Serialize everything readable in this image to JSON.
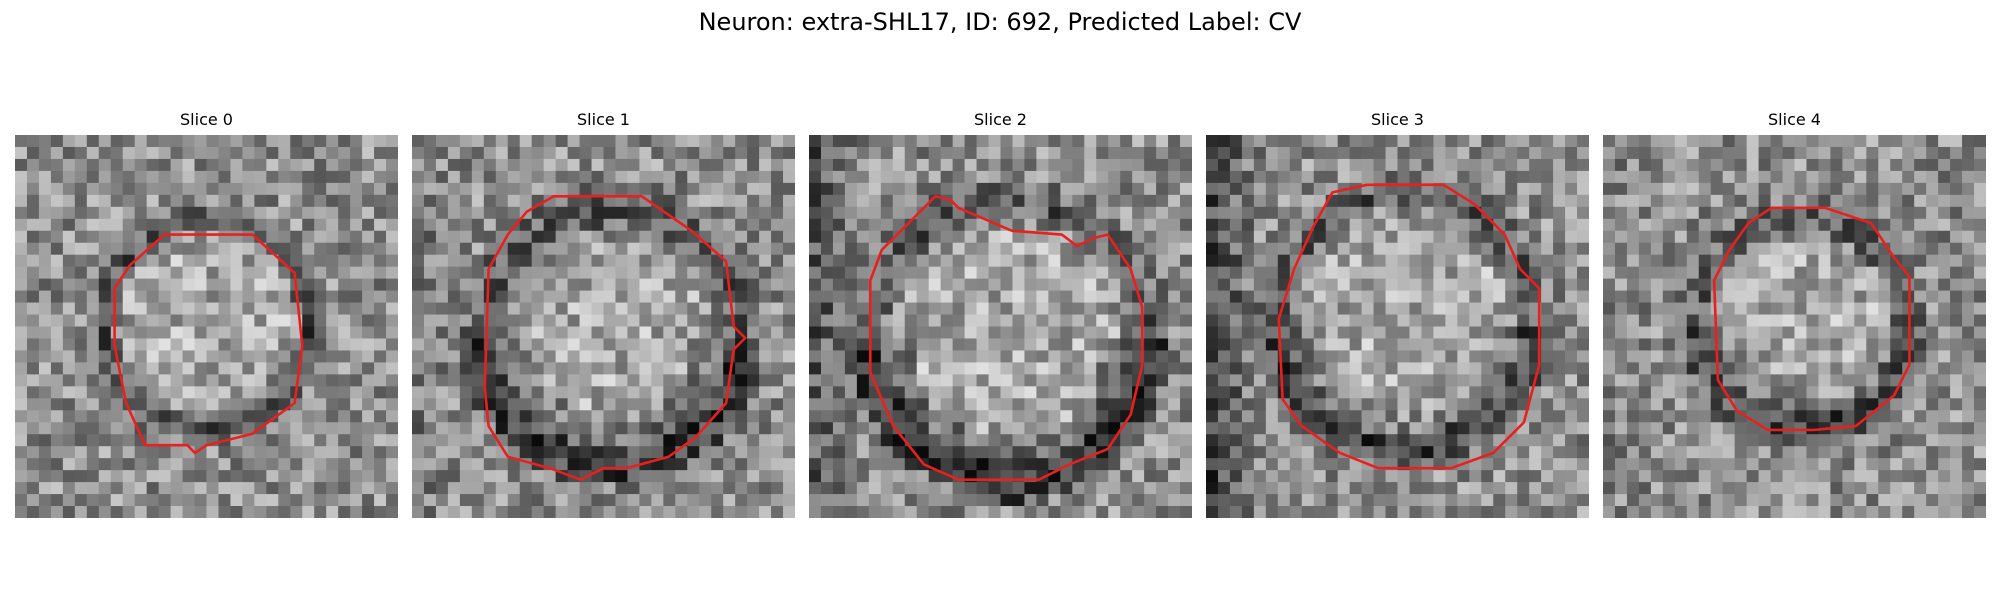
{
  "figure": {
    "title": "Neuron: extra-SHL17, ID: 692, Predicted Label: CV"
  },
  "colors": {
    "contour": "#e8201f",
    "background": "#ffffff",
    "colormap": "grayscale"
  },
  "panels": [
    {
      "title": "Slice 0",
      "image": "grayscale-microscopy-patch",
      "overlay": "red-segmentation-contour"
    },
    {
      "title": "Slice 1",
      "image": "grayscale-microscopy-patch",
      "overlay": "red-segmentation-contour"
    },
    {
      "title": "Slice 2",
      "image": "grayscale-microscopy-patch",
      "overlay": "red-segmentation-contour"
    },
    {
      "title": "Slice 3",
      "image": "grayscale-microscopy-patch",
      "overlay": "red-segmentation-contour"
    },
    {
      "title": "Slice 4",
      "image": "grayscale-microscopy-patch",
      "overlay": "red-segmentation-contour"
    }
  ]
}
